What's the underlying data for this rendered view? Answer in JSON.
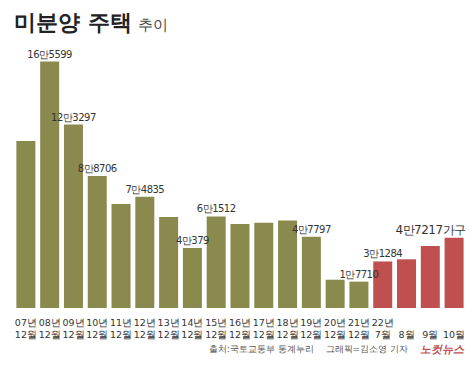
{
  "chart_data": {
    "type": "bar",
    "title": "미분양 주택",
    "subtitle": "추이",
    "categories": [
      "07년 12월",
      "08년 12월",
      "09년 12월",
      "10년 12월",
      "11년 12월",
      "12년 12월",
      "13년 12월",
      "14년 12월",
      "15년 12월",
      "16년 12월",
      "17년 12월",
      "18년 12월",
      "19년 12월",
      "20년 12월",
      "21년 12월",
      "22년 7월",
      "8월",
      "9월",
      "10월"
    ],
    "values": [
      112254,
      165599,
      123297,
      88706,
      69807,
      74835,
      61091,
      40379,
      61512,
      56413,
      57330,
      58838,
      47797,
      19005,
      17710,
      31284,
      32722,
      41604,
      47217
    ],
    "value_labels": [
      null,
      "16만5599",
      "12만3297",
      "8만8706",
      null,
      "7만4835",
      null,
      "4만379",
      "6만1512",
      null,
      null,
      null,
      "4만7797",
      null,
      "1만7710",
      "3만1284",
      null,
      null,
      "4만7217가구"
    ],
    "colors": [
      "#8b8a4e",
      "#8b8a4e",
      "#8b8a4e",
      "#8b8a4e",
      "#8b8a4e",
      "#8b8a4e",
      "#8b8a4e",
      "#8b8a4e",
      "#8b8a4e",
      "#8b8a4e",
      "#8b8a4e",
      "#8b8a4e",
      "#8b8a4e",
      "#8b8a4e",
      "#8b8a4e",
      "#c0504f",
      "#c0504f",
      "#c0504f",
      "#c0504f"
    ],
    "ylim": [
      0,
      170000
    ],
    "data_labels": true,
    "tick_labels": "x",
    "grid": false,
    "annotations": [
      "출처:국토교통부 통계누리",
      "그래픽=김소영 기자",
      "노컷뉴스"
    ]
  }
}
